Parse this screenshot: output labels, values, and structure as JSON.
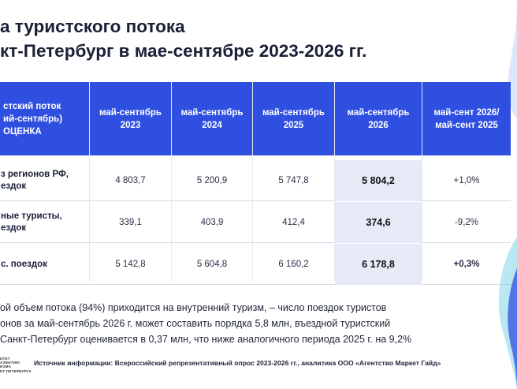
{
  "title": {
    "line1": "а туристского потока",
    "line2": "кт-Петербург в мае-сентябре 2023-2026 гг."
  },
  "table": {
    "header_label": [
      "стский поток",
      "ий-сентябрь)",
      "ОЦЕНКА"
    ],
    "columns": [
      [
        "май-сентябрь",
        "2023"
      ],
      [
        "май-сентябрь",
        "2024"
      ],
      [
        "май-сентябрь",
        "2025"
      ],
      [
        "май-сентябрь",
        "2026"
      ],
      [
        "май-сент 2026/",
        "май-сент 2025"
      ]
    ],
    "rows": [
      {
        "label": [
          "з регионов РФ,",
          "ездок"
        ],
        "values": [
          "4 803,7",
          "5 200,9",
          "5 747,8",
          "5 804,2",
          "+1,0%"
        ]
      },
      {
        "label": [
          "ные туристы,",
          "ездок"
        ],
        "values": [
          "339,1",
          "403,9",
          "412,4",
          "374,6",
          "-9,2%"
        ]
      },
      {
        "label": [
          "с. поездок"
        ],
        "values": [
          "5 142,8",
          "5 604,8",
          "6 160,2",
          "6 178,8",
          "+0,3%"
        ]
      }
    ]
  },
  "note": [
    "ой объем потока (94%) приходится на внутренний туризм, – число поездок туристов",
    "онов за май-сентябрь 2026 г. может составить порядка 5,8 млн, въездной туристский",
    "Санкт-Петербург оценивается в 0,37 млн, что ниже аналогичного периода 2025 г. на 9,2%"
  ],
  "logo_text": [
    "ИТЕТ",
    "АЗВИТИЮ",
    "ИЗМА",
    "КТ-ПЕТЕРБУРГА"
  ],
  "source": "Источник информации: Всероссийский репрезентативный опрос 2023-2026 гг., аналитика ООО «Агентство Маркет Гайд»",
  "colors": {
    "header_bg": "#2f4fe0",
    "highlight_bg": "#e5eaf6",
    "title": "#1a1f36",
    "deco_blue": "#2f4fe0",
    "deco_teal": "#7fd6e8"
  }
}
